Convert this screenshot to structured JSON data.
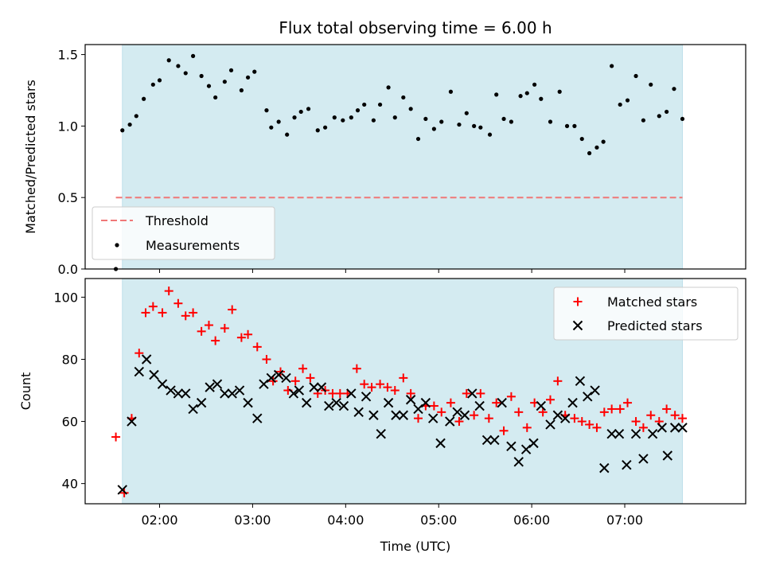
{
  "chart_data": {
    "type": "scatter",
    "title": "Flux total observing time = 6.00 h",
    "xlabel": "Time (UTC)",
    "x_tick_labels": [
      "02:00",
      "03:00",
      "04:00",
      "05:00",
      "06:00",
      "07:00"
    ],
    "x_tick_hours": [
      2,
      3,
      4,
      5,
      6,
      7
    ],
    "xlim_hours": [
      1.2,
      8.3
    ],
    "observing_window_hours": [
      1.6,
      7.62
    ],
    "observing_window_color": "#d4ebf1",
    "top": {
      "ylabel": "Matched/Predicted stars",
      "ylim": [
        0,
        1.57
      ],
      "y_ticks": [
        0.0,
        0.5,
        1.0,
        1.5
      ],
      "y_tick_labels": [
        "0.0",
        "0.5",
        "1.0",
        "1.5"
      ],
      "legend": [
        "Threshold",
        "Measurements"
      ],
      "legend_position": "lower-left",
      "threshold": {
        "name": "Threshold",
        "y": 0.5,
        "x_range_hours": [
          1.53,
          7.62
        ],
        "color": "#f07878"
      },
      "measurements": {
        "name": "Measurements",
        "color": "#000000",
        "x": [
          1.53,
          1.6,
          1.68,
          1.75,
          1.83,
          1.93,
          2.0,
          2.1,
          2.2,
          2.28,
          2.36,
          2.45,
          2.53,
          2.6,
          2.7,
          2.77,
          2.88,
          2.95,
          3.02,
          3.15,
          3.2,
          3.28,
          3.37,
          3.45,
          3.52,
          3.6,
          3.7,
          3.78,
          3.88,
          3.97,
          4.06,
          4.13,
          4.2,
          4.3,
          4.37,
          4.46,
          4.53,
          4.62,
          4.7,
          4.78,
          4.86,
          4.95,
          5.03,
          5.13,
          5.22,
          5.3,
          5.38,
          5.45,
          5.55,
          5.62,
          5.7,
          5.78,
          5.88,
          5.95,
          6.03,
          6.1,
          6.2,
          6.3,
          6.38,
          6.46,
          6.54,
          6.62,
          6.7,
          6.77,
          6.86,
          6.95,
          7.03,
          7.12,
          7.2,
          7.28,
          7.37,
          7.45,
          7.53,
          7.62
        ],
        "y": [
          0.0,
          0.97,
          1.01,
          1.07,
          1.19,
          1.29,
          1.32,
          1.46,
          1.42,
          1.37,
          1.49,
          1.35,
          1.28,
          1.2,
          1.31,
          1.39,
          1.25,
          1.34,
          1.38,
          1.11,
          0.99,
          1.03,
          0.94,
          1.06,
          1.1,
          1.12,
          0.97,
          0.99,
          1.06,
          1.04,
          1.06,
          1.11,
          1.15,
          1.04,
          1.15,
          1.27,
          1.06,
          1.2,
          1.12,
          0.91,
          1.05,
          0.98,
          1.03,
          1.24,
          1.01,
          1.09,
          1.0,
          0.99,
          0.94,
          1.22,
          1.05,
          1.03,
          1.21,
          1.23,
          1.29,
          1.19,
          1.03,
          1.24,
          1.0,
          1.0,
          0.91,
          0.81,
          0.85,
          0.89,
          1.42,
          1.15,
          1.18,
          1.35,
          1.04,
          1.29,
          1.07,
          1.1,
          1.26,
          1.05
        ]
      }
    },
    "bottom": {
      "ylabel": "Count",
      "ylim": [
        33.5,
        106
      ],
      "y_ticks": [
        40,
        60,
        80,
        100
      ],
      "y_tick_labels": [
        "40",
        "60",
        "80",
        "100"
      ],
      "legend": [
        "Matched stars",
        "Predicted stars"
      ],
      "legend_position": "upper-right",
      "series": [
        {
          "name": "Matched stars",
          "marker": "plus",
          "color": "#ff0000",
          "x": [
            1.53,
            1.62,
            1.7,
            1.78,
            1.85,
            1.93,
            2.03,
            2.1,
            2.2,
            2.28,
            2.36,
            2.45,
            2.53,
            2.6,
            2.7,
            2.78,
            2.88,
            2.95,
            3.05,
            3.15,
            3.22,
            3.3,
            3.38,
            3.46,
            3.54,
            3.62,
            3.7,
            3.78,
            3.86,
            3.94,
            4.02,
            4.12,
            4.2,
            4.28,
            4.37,
            4.45,
            4.53,
            4.62,
            4.7,
            4.78,
            4.86,
            4.95,
            5.03,
            5.13,
            5.22,
            5.3,
            5.38,
            5.45,
            5.54,
            5.62,
            5.7,
            5.78,
            5.86,
            5.95,
            6.03,
            6.12,
            6.2,
            6.28,
            6.36,
            6.46,
            6.54,
            6.62,
            6.7,
            6.78,
            6.86,
            6.95,
            7.03,
            7.12,
            7.2,
            7.28,
            7.37,
            7.45,
            7.54,
            7.62
          ],
          "y": [
            55,
            37,
            61,
            82,
            95,
            97,
            95,
            102,
            98,
            94,
            95,
            89,
            91,
            86,
            90,
            96,
            87,
            88,
            84,
            80,
            73,
            76,
            70,
            73,
            77,
            74,
            69,
            70,
            69,
            69,
            69,
            77,
            72,
            71,
            72,
            71,
            70,
            74,
            69,
            61,
            65,
            65,
            63,
            66,
            60,
            69,
            62,
            69,
            61,
            66,
            57,
            68,
            63,
            58,
            66,
            63,
            67,
            73,
            62,
            61,
            60,
            59,
            58,
            63,
            64,
            64,
            66,
            60,
            58,
            62,
            60,
            64,
            62,
            61
          ]
        },
        {
          "name": "Predicted stars",
          "marker": "x",
          "color": "#000000",
          "x": [
            1.6,
            1.7,
            1.78,
            1.86,
            1.94,
            2.03,
            2.12,
            2.2,
            2.28,
            2.36,
            2.45,
            2.54,
            2.62,
            2.7,
            2.78,
            2.86,
            2.95,
            3.05,
            3.12,
            3.2,
            3.28,
            3.36,
            3.44,
            3.5,
            3.58,
            3.66,
            3.74,
            3.82,
            3.9,
            3.98,
            4.06,
            4.14,
            4.22,
            4.3,
            4.38,
            4.46,
            4.54,
            4.62,
            4.7,
            4.78,
            4.86,
            4.94,
            5.02,
            5.12,
            5.2,
            5.28,
            5.36,
            5.44,
            5.52,
            5.6,
            5.68,
            5.78,
            5.86,
            5.94,
            6.02,
            6.1,
            6.2,
            6.28,
            6.36,
            6.44,
            6.52,
            6.6,
            6.68,
            6.78,
            6.86,
            6.94,
            7.02,
            7.12,
            7.2,
            7.3,
            7.4,
            7.46,
            7.54,
            7.62
          ],
          "y": [
            38,
            60,
            76,
            80,
            75,
            72,
            70,
            69,
            69,
            64,
            66,
            71,
            72,
            69,
            69,
            70,
            66,
            61,
            72,
            74,
            75,
            74,
            69,
            70,
            66,
            71,
            71,
            65,
            66,
            65,
            69,
            63,
            68,
            62,
            56,
            66,
            62,
            62,
            67,
            64,
            66,
            61,
            53,
            60,
            63,
            62,
            69,
            65,
            54,
            54,
            66,
            52,
            47,
            51,
            53,
            65,
            59,
            62,
            61,
            66,
            73,
            68,
            70,
            45,
            56,
            56,
            46,
            56,
            48,
            56,
            58,
            49,
            58,
            58
          ]
        }
      ]
    }
  }
}
